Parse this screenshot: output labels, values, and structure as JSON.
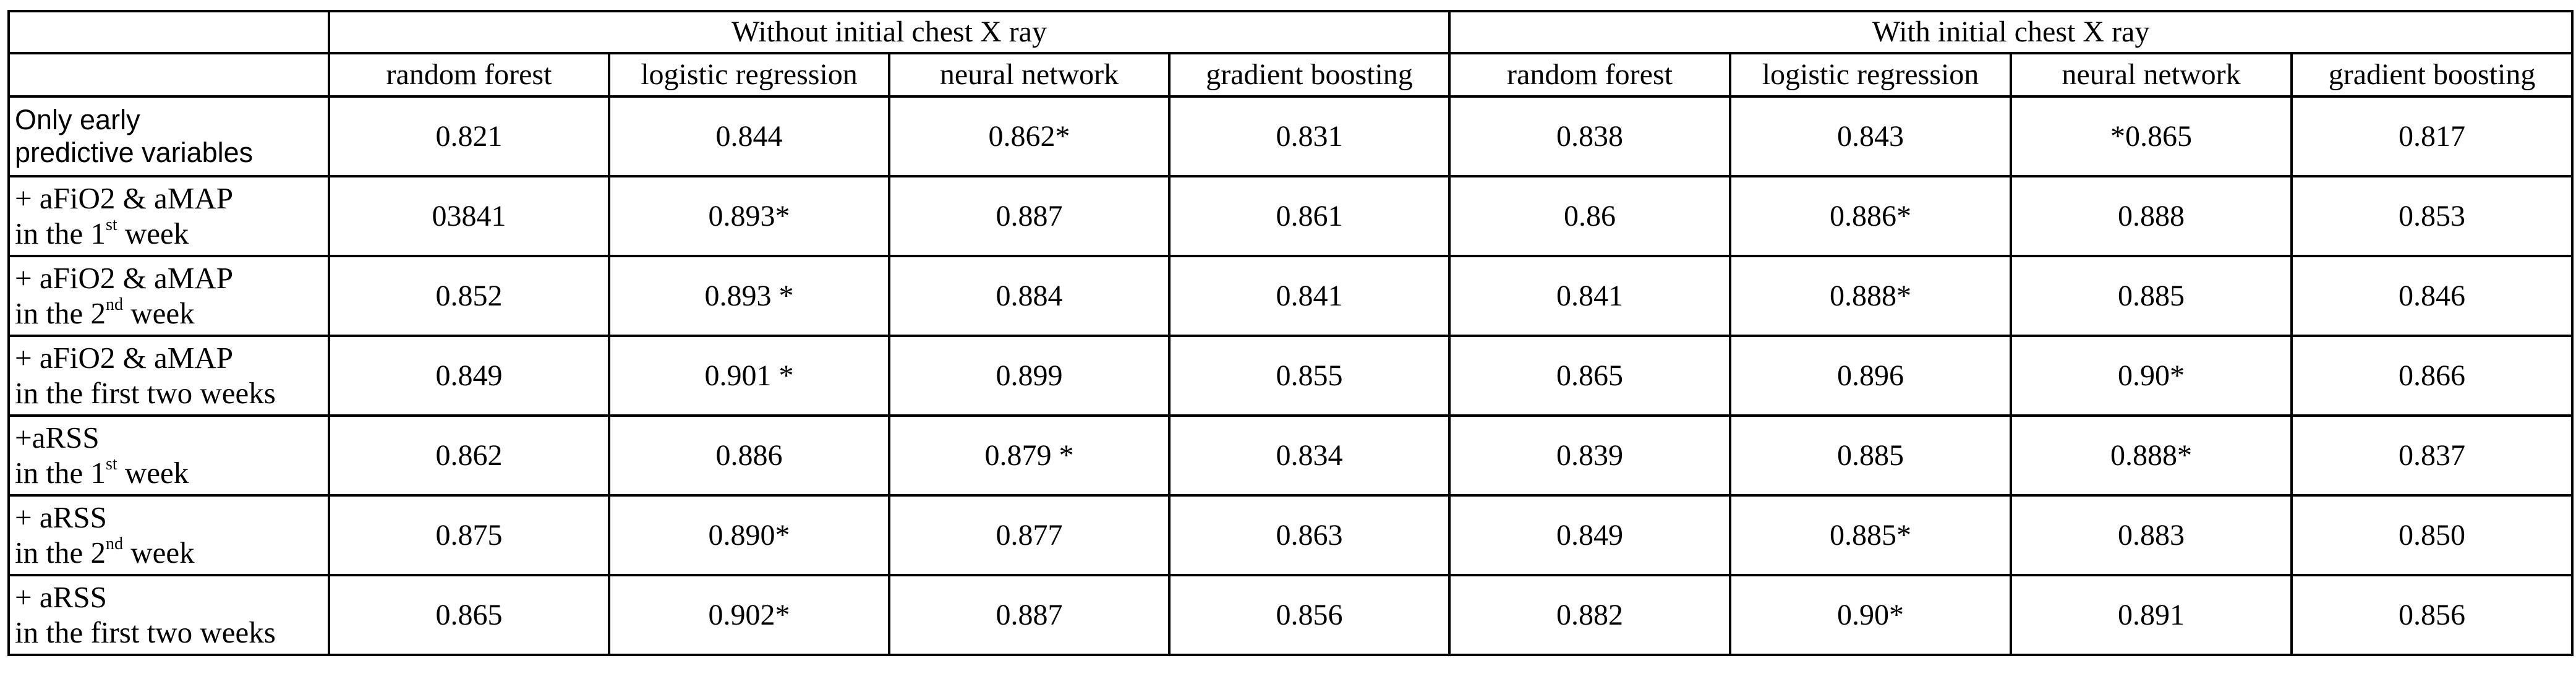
{
  "table": {
    "groups": [
      "Without initial chest X ray",
      "With initial chest X ray"
    ],
    "models": [
      "random forest",
      "logistic regression",
      "neural network",
      "gradient boosting"
    ],
    "rows": [
      {
        "label_line1": "Only early",
        "label_line2_pre": "predictive variables",
        "label_line2_sup": "",
        "label_line2_post": "",
        "values": [
          "0.821",
          "0.844",
          "0.862*",
          "0.831",
          "0.838",
          "0.843",
          "*0.865",
          "0.817"
        ]
      },
      {
        "label_line1": "+ aFiO2 & aMAP",
        "label_line2_pre": "in the 1",
        "label_line2_sup": "st",
        "label_line2_post": " week",
        "values": [
          "03841",
          "0.893*",
          "0.887",
          "0.861",
          "0.86",
          "0.886*",
          "0.888",
          "0.853"
        ]
      },
      {
        "label_line1": "+ aFiO2 & aMAP",
        "label_line2_pre": "in the 2",
        "label_line2_sup": "nd",
        "label_line2_post": " week",
        "values": [
          "0.852",
          "0.893 *",
          "0.884",
          "0.841",
          "0.841",
          "0.888*",
          "0.885",
          "0.846"
        ]
      },
      {
        "label_line1": "+ aFiO2 & aMAP",
        "label_line2_pre": "in the first two weeks",
        "label_line2_sup": "",
        "label_line2_post": "",
        "values": [
          "0.849",
          "0.901 *",
          "0.899",
          "0.855",
          "0.865",
          "0.896",
          "0.90*",
          "0.866"
        ]
      },
      {
        "label_line1": "+aRSS",
        "label_line2_pre": "in the 1",
        "label_line2_sup": "st",
        "label_line2_post": " week",
        "values": [
          "0.862",
          "0.886",
          "0.879 *",
          "0.834",
          "0.839",
          "0.885",
          "0.888*",
          "0.837"
        ]
      },
      {
        "label_line1": "+ aRSS",
        "label_line2_pre": "in the 2",
        "label_line2_sup": "nd",
        "label_line2_post": " week",
        "values": [
          "0.875",
          "0.890*",
          "0.877",
          "0.863",
          "0.849",
          "0.885*",
          "0.883",
          "0.850"
        ]
      },
      {
        "label_line1": "+ aRSS",
        "label_line2_pre": "in the first two weeks",
        "label_line2_sup": "",
        "label_line2_post": "",
        "values": [
          "0.865",
          "0.902*",
          "0.887",
          "0.856",
          "0.882",
          "0.90*",
          "0.891",
          "0.856"
        ]
      }
    ]
  }
}
